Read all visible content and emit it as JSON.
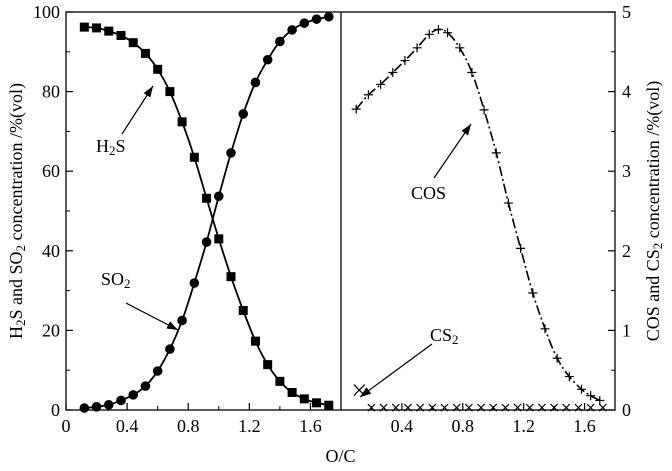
{
  "chart_data": [
    {
      "type": "line",
      "panel": "left",
      "x_label": "O/C",
      "y_label": {
        "parts": [
          "H",
          "2",
          "S and SO",
          "2",
          " concentration /%(vol)"
        ]
      },
      "xlim": [
        0,
        1.8
      ],
      "ylim": [
        0,
        100
      ],
      "x_ticks": [
        "0",
        "0.4",
        "0.8",
        "1.2",
        "1.6"
      ],
      "x_tick_values": [
        0,
        0.4,
        0.8,
        1.2,
        1.6
      ],
      "y_ticks": [
        "0",
        "20",
        "40",
        "60",
        "80",
        "100"
      ],
      "y_tick_values": [
        0,
        20,
        40,
        60,
        80,
        100
      ],
      "series": [
        {
          "marker": "square",
          "label_parts": [
            "H",
            "2",
            "S"
          ],
          "x": [
            0.12,
            0.2,
            0.28,
            0.36,
            0.44,
            0.52,
            0.6,
            0.68,
            0.76,
            0.84,
            0.92,
            1.0,
            1.08,
            1.16,
            1.24,
            1.32,
            1.4,
            1.48,
            1.56,
            1.64,
            1.72
          ],
          "y": [
            96.2,
            96.0,
            95.2,
            94.1,
            92.3,
            89.6,
            85.6,
            80.0,
            72.4,
            63.5,
            53.2,
            43.0,
            33.5,
            25.0,
            17.3,
            11.4,
            7.2,
            4.4,
            2.8,
            1.8,
            1.2
          ]
        },
        {
          "marker": "circle",
          "label_parts": [
            "SO",
            "2"
          ],
          "x": [
            0.12,
            0.2,
            0.28,
            0.36,
            0.44,
            0.52,
            0.6,
            0.68,
            0.76,
            0.84,
            0.92,
            1.0,
            1.08,
            1.16,
            1.24,
            1.32,
            1.4,
            1.48,
            1.56,
            1.64,
            1.72
          ],
          "y": [
            0.5,
            0.8,
            1.3,
            2.4,
            3.8,
            6.0,
            9.8,
            15.3,
            22.5,
            31.9,
            42.2,
            53.7,
            64.6,
            74.4,
            82.3,
            88.0,
            92.6,
            95.5,
            97.2,
            98.2,
            98.8
          ]
        }
      ]
    },
    {
      "type": "line",
      "panel": "right",
      "y_label": {
        "parts": [
          "COS and CS",
          "2",
          " concentration /%(vol)"
        ]
      },
      "xlim": [
        0,
        1.8
      ],
      "ylim": [
        0,
        5
      ],
      "x_ticks": [
        "0.4",
        "0.8",
        "1.2",
        "1.6"
      ],
      "x_tick_values": [
        0.4,
        0.8,
        1.2,
        1.6
      ],
      "y_ticks": [
        "0",
        "1",
        "2",
        "3",
        "4",
        "5"
      ],
      "y_tick_values": [
        0,
        1,
        2,
        3,
        4,
        5
      ],
      "series": [
        {
          "marker": "plus",
          "label_parts": [
            "COS"
          ],
          "x": [
            0.1,
            0.18,
            0.26,
            0.34,
            0.42,
            0.5,
            0.58,
            0.64,
            0.7,
            0.78,
            0.86,
            0.94,
            1.02,
            1.1,
            1.18,
            1.26,
            1.34,
            1.42,
            1.5,
            1.58,
            1.64,
            1.7
          ],
          "y": [
            3.78,
            3.96,
            4.09,
            4.24,
            4.39,
            4.55,
            4.72,
            4.78,
            4.74,
            4.55,
            4.24,
            3.77,
            3.23,
            2.6,
            2.03,
            1.47,
            1.02,
            0.65,
            0.42,
            0.26,
            0.18,
            0.12
          ]
        },
        {
          "marker": "x",
          "label_parts": [
            "CS",
            "2"
          ],
          "x": [
            0.12,
            0.2,
            0.28,
            0.36,
            0.44,
            0.52,
            0.6,
            0.68,
            0.76,
            0.84,
            0.92,
            1.0,
            1.08,
            1.16,
            1.24,
            1.32,
            1.4,
            1.48,
            1.56,
            1.64,
            1.72
          ],
          "y": [
            0.25,
            0.03,
            0.03,
            0.03,
            0.03,
            0.03,
            0.03,
            0.03,
            0.03,
            0.03,
            0.03,
            0.03,
            0.03,
            0.03,
            0.03,
            0.03,
            0.03,
            0.03,
            0.03,
            0.03,
            0.03
          ]
        }
      ]
    }
  ]
}
